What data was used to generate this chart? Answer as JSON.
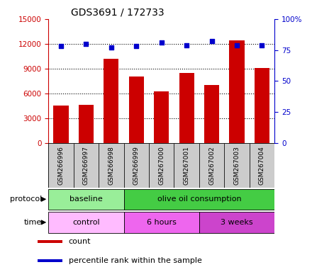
{
  "title": "GDS3691 / 172733",
  "samples": [
    "GSM266996",
    "GSM266997",
    "GSM266998",
    "GSM266999",
    "GSM267000",
    "GSM267001",
    "GSM267002",
    "GSM267003",
    "GSM267004"
  ],
  "counts": [
    4500,
    4600,
    10200,
    8000,
    6200,
    8500,
    7000,
    12400,
    9100
  ],
  "percentile_ranks": [
    78,
    80,
    77,
    78,
    81,
    79,
    82,
    79,
    79
  ],
  "bar_color": "#cc0000",
  "dot_color": "#0000cc",
  "ylim_left": [
    0,
    15000
  ],
  "ylim_right": [
    0,
    100
  ],
  "yticks_left": [
    0,
    3000,
    6000,
    9000,
    12000,
    15000
  ],
  "yticks_right": [
    0,
    25,
    50,
    75,
    100
  ],
  "ytick_labels_left": [
    "0",
    "3000",
    "6000",
    "9000",
    "12000",
    "15000"
  ],
  "ytick_labels_right": [
    "0",
    "25",
    "50",
    "75",
    "100%"
  ],
  "gridline_y": [
    3000,
    6000,
    9000,
    12000
  ],
  "protocol_groups": [
    {
      "label": "baseline",
      "start": 0,
      "end": 3,
      "color": "#99ee99"
    },
    {
      "label": "olive oil consumption",
      "start": 3,
      "end": 9,
      "color": "#44cc44"
    }
  ],
  "time_groups": [
    {
      "label": "control",
      "start": 0,
      "end": 3,
      "color": "#ffbbff"
    },
    {
      "label": "6 hours",
      "start": 3,
      "end": 6,
      "color": "#ee66ee"
    },
    {
      "label": "3 weeks",
      "start": 6,
      "end": 9,
      "color": "#cc44cc"
    }
  ],
  "legend_count_label": "count",
  "legend_pct_label": "percentile rank within the sample",
  "protocol_label": "protocol",
  "time_label": "time",
  "sample_box_color": "#cccccc",
  "left_axis_color": "#cc0000",
  "right_axis_color": "#0000cc",
  "fig_width": 4.4,
  "fig_height": 3.84,
  "dpi": 100
}
